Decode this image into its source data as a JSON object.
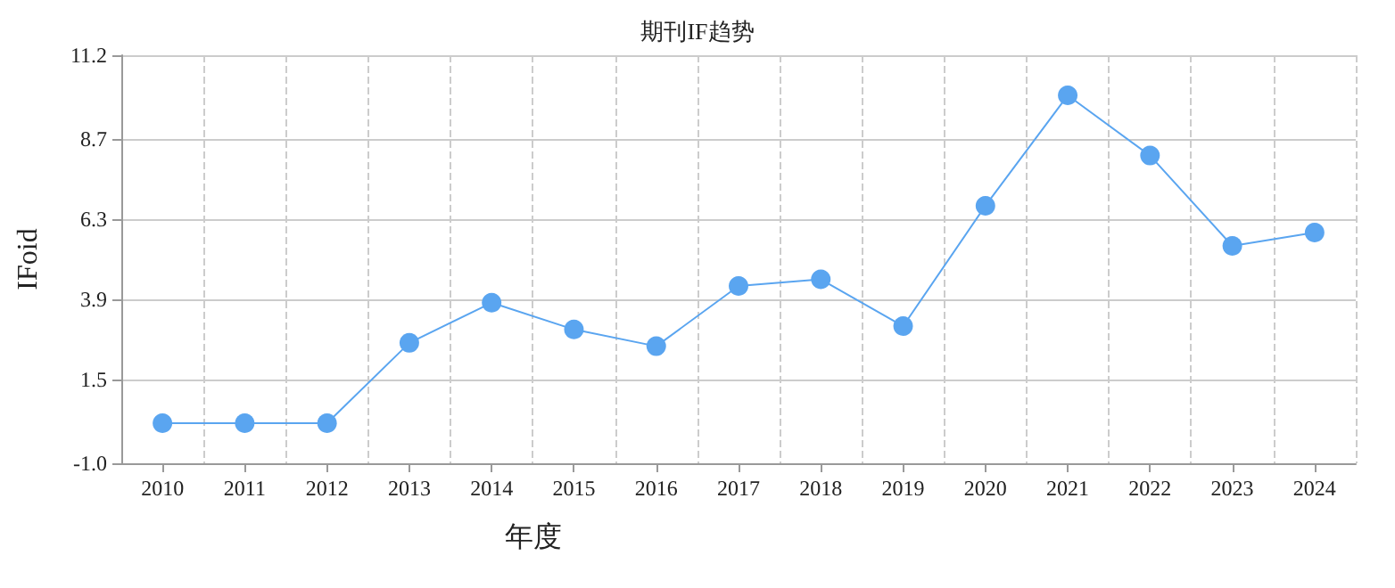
{
  "chart_data": {
    "type": "line",
    "title": "期刊IF趋势",
    "xlabel": "年度",
    "ylabel": "IFoid",
    "categories": [
      "2010",
      "2011",
      "2012",
      "2013",
      "2014",
      "2015",
      "2016",
      "2017",
      "2018",
      "2019",
      "2020",
      "2021",
      "2022",
      "2023",
      "2024"
    ],
    "series": [
      {
        "color": "#5aa5f0",
        "values": [
          0.2,
          0.2,
          0.2,
          2.6,
          3.8,
          3.0,
          2.5,
          4.3,
          4.5,
          3.1,
          6.7,
          10.0,
          8.2,
          5.5,
          5.9
        ]
      }
    ],
    "ylim": [
      -1.0,
      11.2
    ],
    "yticks": [
      {
        "value": -1.0,
        "label": "-1.0"
      },
      {
        "value": 1.5,
        "label": "1.5"
      },
      {
        "value": 3.9,
        "label": "3.9"
      },
      {
        "value": 6.3,
        "label": "6.3"
      },
      {
        "value": 8.7,
        "label": "8.7"
      },
      {
        "value": 11.2,
        "label": "11.2"
      }
    ],
    "grid": true,
    "marker": "circle",
    "line_style": "solid"
  }
}
